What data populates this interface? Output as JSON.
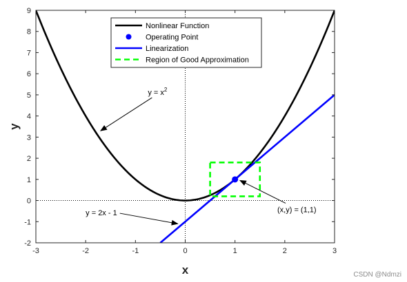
{
  "chart_data": {
    "type": "line",
    "xlabel": "x",
    "ylabel": "y",
    "xlim": [
      -3,
      3
    ],
    "ylim": [
      -2,
      9
    ],
    "xticks": [
      -3,
      -2,
      -1,
      0,
      1,
      2,
      3
    ],
    "yticks": [
      -2,
      -1,
      0,
      1,
      2,
      3,
      4,
      5,
      6,
      7,
      8,
      9
    ],
    "grid": false,
    "legend_position": "top-center",
    "series": [
      {
        "name": "Nonlinear Function",
        "kind": "curve",
        "function": "x^2",
        "x_range": [
          -3,
          3
        ],
        "color": "#000000",
        "style": "solid"
      },
      {
        "name": "Operating Point",
        "kind": "marker",
        "points": [
          [
            1,
            1
          ]
        ],
        "color": "#0000ff"
      },
      {
        "name": "Linearization",
        "kind": "line",
        "points": [
          [
            -0.5,
            -2
          ],
          [
            3,
            5
          ]
        ],
        "color": "#0000ff",
        "style": "solid"
      },
      {
        "name": "Region of Good Approximation",
        "kind": "rectangle",
        "x": [
          0.5,
          1.5
        ],
        "y": [
          0.2,
          1.8
        ],
        "color": "#00ff00",
        "style": "dashed"
      }
    ],
    "reference_lines": [
      {
        "orientation": "vertical",
        "value": 0,
        "style": "dotted"
      },
      {
        "orientation": "horizontal",
        "value": 0,
        "style": "dotted"
      }
    ],
    "annotations": [
      {
        "text": "y = x",
        "superscript": "2",
        "text_at": [
          -0.75,
          5
        ],
        "arrow_to": [
          -1.7,
          3.3
        ]
      },
      {
        "text": "y = 2x - 1",
        "text_at": [
          -2.0,
          -0.7
        ],
        "arrow_to": [
          -0.15,
          -1.1
        ]
      },
      {
        "text": "(x,y) = (1,1)",
        "text_at": [
          1.85,
          -0.55
        ],
        "arrow_to": [
          1.1,
          0.95
        ]
      }
    ]
  },
  "watermark": "CSDN @Ndmzi"
}
